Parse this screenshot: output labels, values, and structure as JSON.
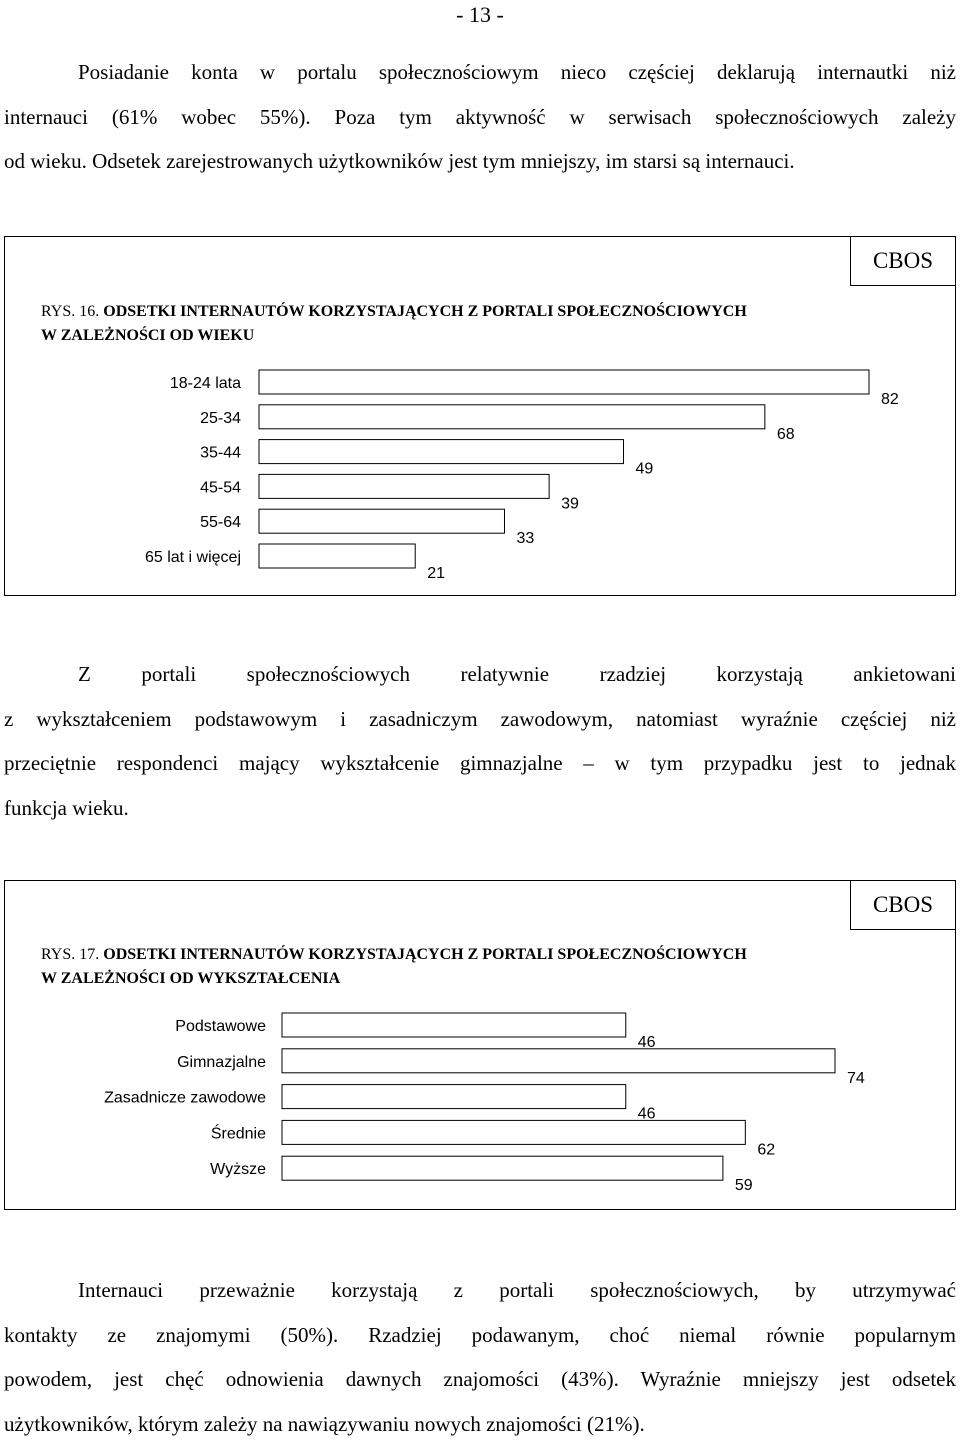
{
  "page": {
    "number": "- 13 -"
  },
  "paragraphs": {
    "p1": [
      "Posiadanie konta w portalu społecznościowym nieco częściej deklarują internautki niż",
      "internauci (61% wobec 55%). Poza tym aktywność w serwisach społecznościowych zależy",
      "od wieku. Odsetek zarejestrowanych użytkowników jest tym mniejszy, im starsi są internauci."
    ],
    "p2": [
      "Z portali społecznościowych relatywnie rzadziej korzystają ankietowani",
      "z wykształceniem podstawowym i zasadniczym zawodowym, natomiast wyraźnie częściej niż",
      "przeciętnie respondenci mający wykształcenie gimnazjalne – w tym przypadku jest to jednak",
      "funkcja wieku."
    ],
    "p3": [
      "Internauci przeważnie korzystają z portali społecznościowych, by utrzymywać",
      "kontakty ze znajomymi (50%). Rzadziej podawanym, choć niemal równie popularnym",
      "powodem, jest chęć odnowienia dawnych znajomości (43%). Wyraźnie mniejszy jest odsetek",
      "użytkowników, którym zależy na nawiązywaniu nowych znajomości (21%)."
    ]
  },
  "chart_data": [
    {
      "type": "bar",
      "orientation": "horizontal",
      "source_badge": "CBOS",
      "figure_number": "RYS. 16.",
      "title_line1": "ODSETKI INTERNAUTÓW KORZYSTAJĄCYCH Z PORTALI SPOŁECZNOŚCIOWYCH",
      "title_line2": "W ZALEŻNOŚCI OD WIEKU",
      "categories": [
        "18-24 lata",
        "25-34",
        "35-44",
        "45-54",
        "55-64",
        "65 lat i więcej"
      ],
      "values": [
        82,
        68,
        49,
        39,
        33,
        21
      ],
      "data_labels": [
        "82",
        "68",
        "49",
        "39",
        "33",
        "21"
      ],
      "xlim": [
        0,
        82
      ],
      "grid": false,
      "bar_fill": "#ffffff",
      "bar_stroke": "#000000"
    },
    {
      "type": "bar",
      "orientation": "horizontal",
      "source_badge": "CBOS",
      "figure_number": "RYS. 17.",
      "title_line1": "ODSETKI INTERNAUTÓW KORZYSTAJĄCYCH Z PORTALI SPOŁECZNOŚCIOWYCH",
      "title_line2": "W ZALEŻNOŚCI OD WYKSZTAŁCENIA",
      "categories": [
        "Podstawowe",
        "Gimnazjalne",
        "Zasadnicze zawodowe",
        "Średnie",
        "Wyższe"
      ],
      "values": [
        46,
        74,
        46,
        62,
        59
      ],
      "data_labels": [
        "46",
        "74",
        "46",
        "62",
        "59"
      ],
      "xlim": [
        0,
        74
      ],
      "grid": false,
      "bar_fill": "#ffffff",
      "bar_stroke": "#000000"
    }
  ]
}
